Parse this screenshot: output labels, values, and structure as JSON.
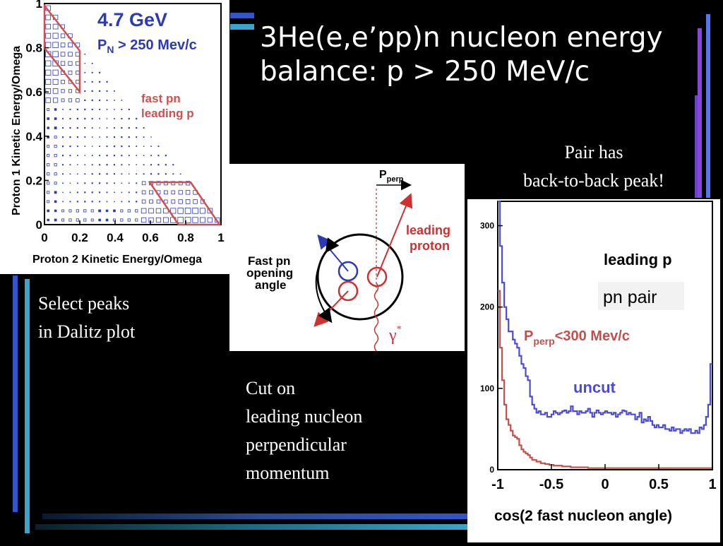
{
  "slide": {
    "title_line1": "3He(e,e’pp)n nucleon energy",
    "title_line2": "balance: p > 250 MeV/c",
    "caption_left_line1": "Select peaks",
    "caption_left_line2": "in Dalitz plot",
    "caption_center_line1": "Cut on",
    "caption_center_line2": "leading nucleon",
    "caption_center_line3": "perpendicular",
    "caption_center_line4": "momentum",
    "caption_right_line1": "Pair has",
    "caption_right_line2": "back-to-back peak!"
  },
  "dalitz": {
    "energy_label": "4.7 GeV",
    "cut_P": "P",
    "cut_sub": "N",
    "cut_rest": " > 250 Mev/c",
    "region_label1": "fast pn",
    "region_label2": "leading p",
    "xlabel": "Proton 2 Kinetic Energy/Omega",
    "ylabel": "Proton 1 Kinetic Energy/Omega",
    "xticks": [
      "0",
      "0.2",
      "0.4",
      "0.6",
      "0.8",
      "1"
    ],
    "yticks": [
      "0",
      "0.2",
      "0.4",
      "0.6",
      "0.8",
      "1"
    ]
  },
  "diagram": {
    "pperp_P": "P",
    "pperp_sub": "perp",
    "leading_line1": "leading",
    "leading_line2": "proton",
    "fast_line1": "Fast pn",
    "fast_line2": "opening",
    "fast_line3": "angle",
    "gamma": "γ",
    "gamma_sup": "*"
  },
  "histogram": {
    "legend_leading": "leading p",
    "legend_pnpair": "pn pair",
    "cut_P": "P",
    "cut_sub": "perp",
    "cut_rest": "<300 Mev/c",
    "uncut_label": "uncut",
    "xlabel": "cos(2 fast nucleon angle)",
    "xticks": [
      "-1",
      "-0.5",
      "0",
      "0.5",
      "1"
    ],
    "yticks": [
      "0",
      "100",
      "200",
      "300"
    ]
  },
  "colors": {
    "uncut": "#4a4adc",
    "cut": "#c0504a",
    "dalitz_boxes": "#2a3bb5",
    "region": "#d05050",
    "deco_blue": "#3355cc",
    "deco_purple": "#8844dd"
  },
  "chart_data": [
    {
      "type": "heatmap",
      "xlabel": "Proton 2 Kinetic Energy/Omega",
      "ylabel": "Proton 1 Kinetic Energy/Omega",
      "xlim": [
        0,
        1
      ],
      "ylim": [
        0,
        1
      ],
      "xticks": [
        0,
        0.2,
        0.4,
        0.6,
        0.8,
        1
      ],
      "yticks": [
        0,
        0.2,
        0.4,
        0.6,
        0.8,
        1
      ],
      "annotations": [
        "4.7 GeV",
        "P_N > 250 Mev/c",
        "fast pn",
        "leading p"
      ]
    },
    {
      "type": "line",
      "xlabel": "cos(2 fast nucleon angle)",
      "xlim": [
        -1,
        1
      ],
      "ylim": [
        0,
        330
      ],
      "xticks": [
        -1,
        -0.5,
        0,
        0.5,
        1
      ],
      "yticks": [
        0,
        100,
        200,
        300
      ],
      "x": [
        -0.99,
        -0.97,
        -0.95,
        -0.93,
        -0.91,
        -0.89,
        -0.87,
        -0.85,
        -0.83,
        -0.81,
        -0.79,
        -0.77,
        -0.75,
        -0.73,
        -0.71,
        -0.69,
        -0.67,
        -0.65,
        -0.63,
        -0.61,
        -0.59,
        -0.57,
        -0.55,
        -0.53,
        -0.51,
        -0.49,
        -0.47,
        -0.45,
        -0.43,
        -0.41,
        -0.39,
        -0.37,
        -0.35,
        -0.33,
        -0.31,
        -0.29,
        -0.27,
        -0.25,
        -0.23,
        -0.21,
        -0.19,
        -0.17,
        -0.15,
        -0.13,
        -0.11,
        -0.09,
        -0.07,
        -0.05,
        -0.03,
        -0.01,
        0.01,
        0.03,
        0.05,
        0.07,
        0.09,
        0.11,
        0.13,
        0.15,
        0.17,
        0.19,
        0.21,
        0.23,
        0.25,
        0.27,
        0.29,
        0.31,
        0.33,
        0.35,
        0.37,
        0.39,
        0.41,
        0.43,
        0.45,
        0.47,
        0.49,
        0.51,
        0.53,
        0.55,
        0.57,
        0.59,
        0.61,
        0.63,
        0.65,
        0.67,
        0.69,
        0.71,
        0.73,
        0.75,
        0.77,
        0.79,
        0.81,
        0.83,
        0.85,
        0.87,
        0.89,
        0.91,
        0.93,
        0.95,
        0.97,
        0.99
      ],
      "series": [
        {
          "name": "uncut",
          "values": [
            330,
            275,
            230,
            200,
            185,
            170,
            170,
            160,
            155,
            150,
            140,
            130,
            125,
            115,
            110,
            90,
            80,
            75,
            70,
            72,
            68,
            68,
            70,
            65,
            65,
            68,
            72,
            70,
            68,
            70,
            72,
            73,
            70,
            72,
            78,
            72,
            72,
            68,
            72,
            70,
            70,
            72,
            75,
            70,
            65,
            70,
            73,
            70,
            68,
            70,
            72,
            70,
            70,
            68,
            70,
            65,
            68,
            70,
            73,
            72,
            68,
            70,
            68,
            68,
            62,
            65,
            70,
            58,
            62,
            60,
            65,
            60,
            55,
            52,
            55,
            52,
            52,
            55,
            50,
            50,
            48,
            52,
            48,
            50,
            50,
            45,
            48,
            50,
            48,
            50,
            45,
            45,
            48,
            45,
            52,
            50,
            55,
            65,
            80,
            130
          ]
        },
        {
          "name": "Pperp<300 Mev/c",
          "values": [
            220,
            150,
            110,
            80,
            62,
            55,
            48,
            42,
            40,
            38,
            30,
            25,
            22,
            20,
            18,
            15,
            12,
            12,
            10,
            10,
            8,
            8,
            7,
            7,
            6,
            6,
            5,
            5,
            5,
            5,
            4,
            4,
            4,
            4,
            3,
            3,
            3,
            3,
            3,
            3,
            3,
            3,
            2,
            2,
            2,
            2,
            2,
            2,
            2,
            2,
            2,
            2,
            2,
            2,
            2,
            2,
            2,
            2,
            2,
            2,
            2,
            2,
            2,
            2,
            2,
            2,
            2,
            2,
            2,
            2,
            2,
            2,
            2,
            2,
            2,
            2,
            2,
            2,
            2,
            2,
            2,
            2,
            2,
            2,
            2,
            2,
            2,
            2,
            2,
            2,
            2,
            2,
            2,
            2,
            2,
            2,
            2,
            2,
            2,
            2
          ]
        }
      ],
      "annotations": [
        "leading p",
        "pn pair",
        "Pperp<300 Mev/c",
        "uncut"
      ]
    }
  ]
}
